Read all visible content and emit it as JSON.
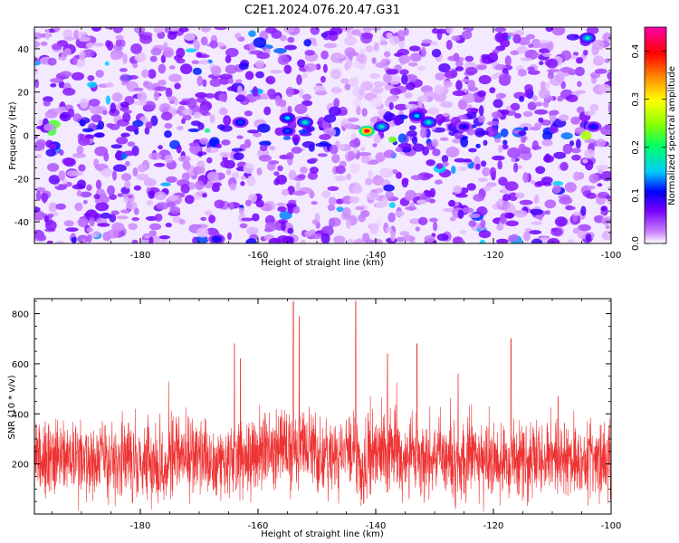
{
  "title": "C2E1.2024.076.20.47.G31",
  "chart_data": [
    {
      "type": "heatmap",
      "xlabel": "Height of straight line (km)",
      "ylabel": "Frequency (Hz)",
      "xlim": [
        -198,
        -100
      ],
      "ylim": [
        -50,
        50
      ],
      "x_ticks": [
        -180,
        -160,
        -140,
        -120,
        -100
      ],
      "x_tick_labels": [
        "-180",
        "-160",
        "-140",
        "-120",
        "-100"
      ],
      "y_ticks": [
        -40,
        -20,
        0,
        20,
        40
      ],
      "y_tick_labels": [
        "-40",
        "-20",
        "0",
        "20",
        "40"
      ],
      "colorbar": {
        "label": "Normalized spectral amplitude",
        "range": [
          0.0,
          0.45
        ],
        "ticks": [
          0.0,
          0.1,
          0.2,
          0.3,
          0.4
        ],
        "tick_labels": [
          "0.0",
          "0.1",
          "0.2",
          "0.3",
          "0.4"
        ],
        "colormap": [
          "#ffffff",
          "#cc88ff",
          "#7a00ff",
          "#0000ff",
          "#00ccff",
          "#00ff66",
          "#88ff00",
          "#ffff00",
          "#ff8800",
          "#ff0000",
          "#ff00aa"
        ]
      },
      "peaks": [
        {
          "x": -141.5,
          "y": 2,
          "amplitude": 0.42
        },
        {
          "x": -139,
          "y": 4,
          "amplitude": 0.2
        },
        {
          "x": -133,
          "y": 9,
          "amplitude": 0.18
        },
        {
          "x": -131,
          "y": 6,
          "amplitude": 0.2
        },
        {
          "x": -152,
          "y": 6,
          "amplitude": 0.2
        },
        {
          "x": -155,
          "y": 8,
          "amplitude": 0.18
        },
        {
          "x": -155,
          "y": 2,
          "amplitude": 0.15
        },
        {
          "x": -163,
          "y": 6,
          "amplitude": 0.15
        },
        {
          "x": -104,
          "y": 45,
          "amplitude": 0.2
        },
        {
          "x": -103,
          "y": 4,
          "amplitude": 0.14
        },
        {
          "x": -167,
          "y": -48,
          "amplitude": 0.14
        },
        {
          "x": -125,
          "y": 4,
          "amplitude": 0.13
        }
      ]
    },
    {
      "type": "line",
      "xlabel": "Height of straight line (km)",
      "ylabel": "SNR (10 * v/v)",
      "xlim": [
        -198,
        -100
      ],
      "ylim": [
        0,
        860
      ],
      "x_ticks": [
        -180,
        -160,
        -140,
        -120,
        -100
      ],
      "x_tick_labels": [
        "-180",
        "-160",
        "-140",
        "-120",
        "-100"
      ],
      "y_ticks": [
        200,
        400,
        600,
        800
      ],
      "y_tick_labels": [
        "200",
        "400",
        "600",
        "800"
      ],
      "color": "#ee3333",
      "baseline": 220,
      "noise_band": [
        50,
        400
      ],
      "notable_peaks": [
        {
          "x": -154,
          "y": 850
        },
        {
          "x": -153,
          "y": 790
        },
        {
          "x": -143.4,
          "y": 850
        },
        {
          "x": -164,
          "y": 680
        },
        {
          "x": -133,
          "y": 680
        },
        {
          "x": -117,
          "y": 700
        },
        {
          "x": -138,
          "y": 640
        },
        {
          "x": -126,
          "y": 560
        },
        {
          "x": -163,
          "y": 620
        },
        {
          "x": -109,
          "y": 470
        }
      ],
      "dip": {
        "x": -142,
        "y": 80
      }
    }
  ]
}
